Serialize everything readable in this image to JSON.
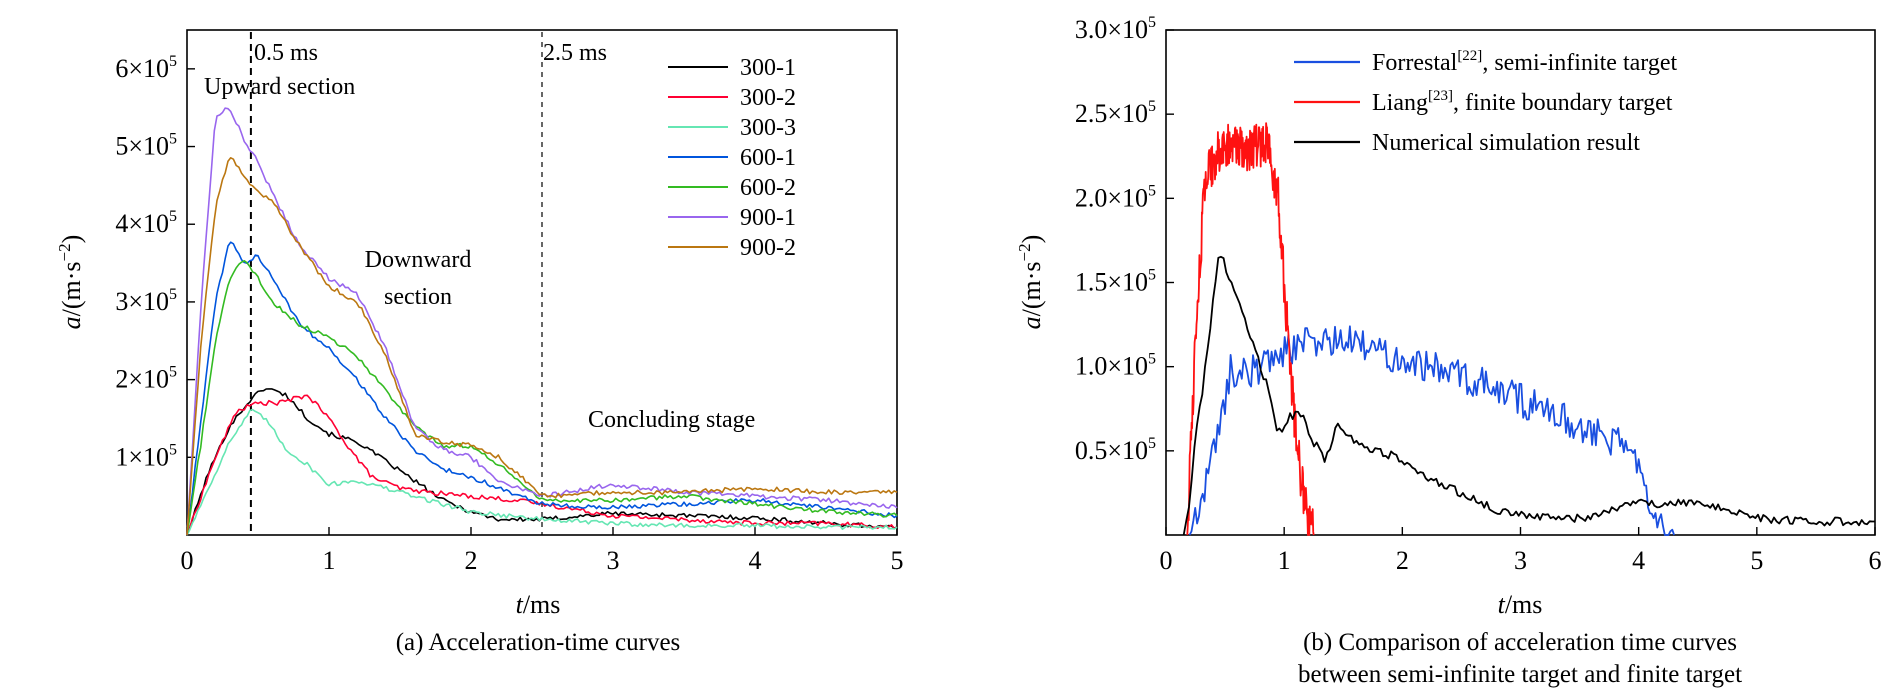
{
  "figure": {
    "panels": [
      {
        "caption": "(a) Acceleration-time curves",
        "x_axis_label": {
          "main": "t",
          "unit": "/ms"
        },
        "y_axis_label": {
          "main": "a",
          "unit": "/(m·s",
          "exp": "−2",
          "close": ")"
        },
        "x_ticks": [
          "0",
          "1",
          "2",
          "3",
          "4",
          "5"
        ],
        "y_ticks": [
          {
            "value": 100000,
            "mant": "1×10",
            "exp": "5"
          },
          {
            "value": 200000,
            "mant": "2×10",
            "exp": "5"
          },
          {
            "value": 300000,
            "mant": "3×10",
            "exp": "5"
          },
          {
            "value": 400000,
            "mant": "4×10",
            "exp": "5"
          },
          {
            "value": 500000,
            "mant": "5×10",
            "exp": "5"
          },
          {
            "value": 600000,
            "mant": "6×10",
            "exp": "5"
          }
        ],
        "annotations": {
          "line_05": "0.5 ms",
          "line_25": "2.5 ms",
          "upward": "Upward section",
          "downward_1": "Downward",
          "downward_2": "section",
          "concluding": "Concluding stage"
        }
      },
      {
        "caption_line1": "(b) Comparison of acceleration time curves",
        "caption_line2": "between semi-infinite target and finite target",
        "x_axis_label": {
          "main": "t",
          "unit": "/ms"
        },
        "y_axis_label": {
          "main": "a",
          "unit": "/(m·s",
          "exp": "−2",
          "close": ")"
        },
        "x_ticks": [
          "0",
          "1",
          "2",
          "3",
          "4",
          "5",
          "6"
        ],
        "y_ticks": [
          {
            "value": 50000,
            "mant": "0.5×10",
            "exp": "5"
          },
          {
            "value": 100000,
            "mant": "1.0×10",
            "exp": "5"
          },
          {
            "value": 150000,
            "mant": "1.5×10",
            "exp": "5"
          },
          {
            "value": 200000,
            "mant": "2.0×10",
            "exp": "5"
          },
          {
            "value": 250000,
            "mant": "2.5×10",
            "exp": "5"
          },
          {
            "value": 300000,
            "mant": "3.0×10",
            "exp": "5"
          }
        ],
        "legend": [
          {
            "pre": "Forrestal",
            "sup": "[22]",
            "post": ", semi-infinite target"
          },
          {
            "pre": "Liang",
            "sup": "[23]",
            "post": ", finite boundary target"
          },
          {
            "pre": "Numerical simulation result",
            "sup": "",
            "post": ""
          }
        ]
      }
    ]
  },
  "chart_data": [
    {
      "type": "line",
      "xlim": [
        0,
        5
      ],
      "ylim": [
        0,
        650000
      ],
      "grid": false,
      "legend_position": "top-right",
      "vlines": [
        {
          "x": 0.45,
          "style": "dashed"
        },
        {
          "x": 2.5,
          "style": "dashed"
        }
      ],
      "series": [
        {
          "name": "300-1",
          "color": "#000000",
          "x": [
            0,
            0.15,
            0.3,
            0.45,
            0.55,
            0.7,
            0.85,
            1.0,
            1.2,
            1.4,
            1.6,
            1.8,
            2.0,
            2.2,
            2.5,
            3.0,
            3.5,
            4.0,
            4.5,
            5.0
          ],
          "y": [
            0,
            80000,
            140000,
            175000,
            190000,
            180000,
            150000,
            130000,
            120000,
            95000,
            70000,
            45000,
            30000,
            20000,
            20000,
            28000,
            25000,
            22000,
            15000,
            10000
          ]
        },
        {
          "name": "300-2",
          "color": "#ff0033",
          "x": [
            0,
            0.2,
            0.35,
            0.5,
            0.65,
            0.85,
            1.0,
            1.15,
            1.3,
            1.5,
            1.7,
            2.0,
            2.3,
            2.5,
            3.0,
            3.5,
            4.0,
            4.5,
            5.0
          ],
          "y": [
            0,
            100000,
            160000,
            170000,
            170000,
            180000,
            150000,
            110000,
            75000,
            60000,
            55000,
            50000,
            45000,
            40000,
            25000,
            20000,
            15000,
            15000,
            10000
          ]
        },
        {
          "name": "300-3",
          "color": "#66e6b3",
          "x": [
            0,
            0.15,
            0.3,
            0.45,
            0.55,
            0.7,
            0.85,
            1.0,
            1.2,
            1.4,
            1.7,
            2.0,
            2.5,
            3.0,
            3.5,
            4.0,
            4.5,
            5.0
          ],
          "y": [
            0,
            60000,
            120000,
            160000,
            150000,
            110000,
            90000,
            65000,
            70000,
            60000,
            45000,
            30000,
            20000,
            15000,
            12000,
            12000,
            10000,
            10000
          ]
        },
        {
          "name": "600-1",
          "color": "#0055dd",
          "x": [
            0,
            0.1,
            0.2,
            0.3,
            0.4,
            0.5,
            0.6,
            0.8,
            1.0,
            1.2,
            1.4,
            1.6,
            1.8,
            2.0,
            2.2,
            2.5,
            3.0,
            3.5,
            4.0,
            4.5,
            5.0
          ],
          "y": [
            0,
            150000,
            300000,
            380000,
            350000,
            360000,
            330000,
            270000,
            240000,
            200000,
            150000,
            110000,
            85000,
            75000,
            60000,
            40000,
            35000,
            40000,
            45000,
            35000,
            25000
          ]
        },
        {
          "name": "600-2",
          "color": "#33bb22",
          "x": [
            0,
            0.1,
            0.2,
            0.3,
            0.4,
            0.5,
            0.6,
            0.8,
            1.0,
            1.2,
            1.4,
            1.6,
            1.8,
            2.0,
            2.2,
            2.5,
            3.0,
            3.5,
            4.0,
            4.5,
            5.0
          ],
          "y": [
            0,
            120000,
            250000,
            330000,
            355000,
            330000,
            300000,
            270000,
            255000,
            230000,
            185000,
            140000,
            115000,
            115000,
            90000,
            45000,
            45000,
            50000,
            40000,
            30000,
            25000
          ]
        },
        {
          "name": "900-1",
          "color": "#9966ee",
          "x": [
            0,
            0.1,
            0.2,
            0.3,
            0.4,
            0.5,
            0.6,
            0.8,
            1.0,
            1.2,
            1.4,
            1.6,
            1.8,
            2.0,
            2.2,
            2.5,
            3.0,
            3.5,
            4.0,
            4.5,
            5.0
          ],
          "y": [
            0,
            300000,
            540000,
            550000,
            510000,
            480000,
            440000,
            370000,
            330000,
            310000,
            240000,
            140000,
            110000,
            100000,
            70000,
            50000,
            65000,
            55000,
            50000,
            45000,
            35000
          ]
        },
        {
          "name": "900-2",
          "color": "#bb7711",
          "x": [
            0,
            0.1,
            0.2,
            0.3,
            0.4,
            0.5,
            0.6,
            0.8,
            1.0,
            1.2,
            1.4,
            1.6,
            1.8,
            2.0,
            2.2,
            2.5,
            3.0,
            3.5,
            4.0,
            4.5,
            5.0
          ],
          "y": [
            0,
            250000,
            420000,
            490000,
            460000,
            440000,
            430000,
            370000,
            320000,
            300000,
            230000,
            130000,
            120000,
            115000,
            100000,
            50000,
            55000,
            55000,
            60000,
            55000,
            55000
          ]
        }
      ]
    },
    {
      "type": "line",
      "xlim": [
        0,
        6
      ],
      "ylim": [
        0,
        300000
      ],
      "grid": false,
      "legend_position": "top-right",
      "series": [
        {
          "name": "Forrestal, semi-infinite target",
          "color": "#1a4fe0",
          "jitter": 10000,
          "x": [
            0.2,
            0.3,
            0.4,
            0.5,
            0.55,
            0.6,
            0.8,
            1.0,
            1.2,
            1.5,
            1.8,
            2.0,
            2.5,
            3.0,
            3.5,
            3.8,
            4.0,
            4.1,
            4.3
          ],
          "y": [
            0,
            20000,
            50000,
            80000,
            100000,
            95000,
            100000,
            110000,
            115000,
            115000,
            110000,
            105000,
            95000,
            80000,
            65000,
            55000,
            45000,
            20000,
            0
          ]
        },
        {
          "name": "Liang, finite boundary target",
          "color": "#ff1111",
          "jitter": 14000,
          "x": [
            0.18,
            0.25,
            0.32,
            0.38,
            0.45,
            0.55,
            0.65,
            0.75,
            0.85,
            0.9,
            0.95,
            1.0,
            1.05,
            1.1,
            1.15,
            1.2,
            1.25
          ],
          "y": [
            0,
            120000,
            200000,
            220000,
            230000,
            230000,
            230000,
            230000,
            232000,
            220000,
            200000,
            150000,
            100000,
            60000,
            30000,
            10000,
            0
          ]
        },
        {
          "name": "Numerical simulation result",
          "color": "#000000",
          "jitter": 2500,
          "x": [
            0.15,
            0.2,
            0.25,
            0.3,
            0.35,
            0.45,
            0.55,
            0.65,
            0.75,
            0.85,
            0.95,
            1.05,
            1.15,
            1.25,
            1.35,
            1.45,
            1.6,
            1.8,
            2.0,
            2.2,
            2.5,
            2.8,
            3.0,
            3.2,
            3.5,
            3.8,
            3.9,
            4.1,
            4.3,
            4.5,
            4.8,
            5.0,
            5.5,
            6.0
          ],
          "y": [
            0,
            20000,
            60000,
            80000,
            110000,
            170000,
            150000,
            130000,
            110000,
            90000,
            60000,
            70000,
            72000,
            55000,
            45000,
            65000,
            55000,
            50000,
            45000,
            35000,
            25000,
            15000,
            12000,
            10000,
            10000,
            15000,
            20000,
            18000,
            20000,
            18000,
            15000,
            10000,
            8000,
            8000
          ]
        }
      ]
    }
  ]
}
